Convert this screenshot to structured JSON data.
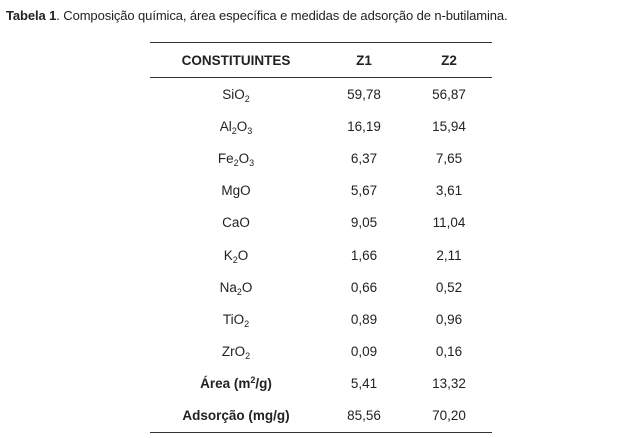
{
  "caption": {
    "label": "Tabela 1",
    "text": ". Composição química, área específica e medidas de adsorção de n-butilamina."
  },
  "table": {
    "headers": [
      "CONSTITUINTES",
      "Z1",
      "Z2"
    ],
    "rows": [
      {
        "name": {
          "base": "SiO",
          "sub": "2",
          "tail": ""
        },
        "z1": "59,78",
        "z2": "56,87"
      },
      {
        "name": {
          "base": "Al",
          "sub": "2",
          "tail": "O",
          "sub2": "3"
        },
        "z1": "16,19",
        "z2": "15,94"
      },
      {
        "name": {
          "base": "Fe",
          "sub": "2",
          "tail": "O",
          "sub2": "3"
        },
        "z1": "6,37",
        "z2": "7,65"
      },
      {
        "name": {
          "base": "MgO"
        },
        "z1": "5,67",
        "z2": "3,61"
      },
      {
        "name": {
          "base": "CaO"
        },
        "z1": "9,05",
        "z2": "11,04"
      },
      {
        "name": {
          "base": "K",
          "sub": "2",
          "tail": "O"
        },
        "z1": "1,66",
        "z2": "2,11"
      },
      {
        "name": {
          "base": "Na",
          "sub": "2",
          "tail": "O"
        },
        "z1": "0,66",
        "z2": "0,52"
      },
      {
        "name": {
          "base": "TiO",
          "sub": "2"
        },
        "z1": "0,89",
        "z2": "0,96"
      },
      {
        "name": {
          "base": "ZrO",
          "sub": "2"
        },
        "z1": "0,09",
        "z2": "0,16"
      },
      {
        "name": {
          "base": "Área (m",
          "sup": "2",
          "tail": "/g)"
        },
        "bold": true,
        "z1": "5,41",
        "z2": "13,32"
      },
      {
        "name": {
          "base": "Adsorção (mg/g)"
        },
        "bold": true,
        "z1": "85,56",
        "z2": "70,20"
      }
    ]
  }
}
